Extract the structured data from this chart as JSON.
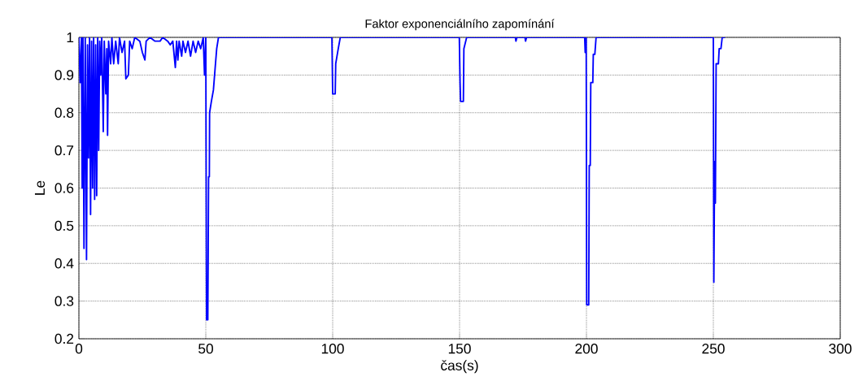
{
  "chart_data": {
    "type": "line",
    "title": "Faktor exponenciálního zapomínání",
    "xlabel": "čas(s)",
    "ylabel": "Le",
    "xlim": [
      0,
      300
    ],
    "ylim": [
      0.2,
      1
    ],
    "xticks": [
      0,
      50,
      100,
      150,
      200,
      250,
      300
    ],
    "yticks": [
      0.2,
      0.3,
      0.4,
      0.5,
      0.6,
      0.7,
      0.8,
      0.9,
      1
    ],
    "grid": true,
    "series": [
      {
        "color": "#0000ff",
        "x": [
          0,
          0.5,
          1,
          1.3,
          1.6,
          2,
          2.5,
          3,
          3.4,
          3.8,
          4.2,
          4.6,
          5,
          5.4,
          5.8,
          6.2,
          6.6,
          7,
          7.4,
          7.8,
          8.2,
          8.6,
          9,
          9.6,
          10,
          10.6,
          11,
          11.3,
          11.7,
          12.5,
          13,
          13.7,
          14.5,
          15.5,
          16,
          17,
          18,
          18.5,
          19.5,
          20,
          21,
          22,
          24,
          25,
          26,
          26.5,
          28,
          30,
          32,
          33,
          35,
          36,
          37,
          38,
          38.5,
          39,
          39.5,
          40.5,
          41,
          42,
          43,
          44,
          45,
          46,
          47,
          48,
          49,
          49.5,
          50,
          50.3,
          50.8,
          51.1,
          51.4,
          51.5,
          52.2,
          53,
          53.7,
          54.3,
          55,
          60,
          99.7,
          100,
          101,
          101.2,
          102.2,
          103,
          149.9,
          150.2,
          150.4,
          151.5,
          151.7,
          152.8,
          172,
          172.2,
          172.6,
          175.8,
          176,
          176.4,
          199.3,
          199.5,
          199.9,
          200.1,
          200.9,
          201.1,
          201.5,
          201.7,
          202.5,
          202.7,
          203.3,
          203.8,
          250,
          250.2,
          250.5,
          250.8,
          251.1,
          252,
          252.3,
          253,
          253.5,
          254.6
        ],
        "values": [
          1,
          0.88,
          1,
          0.6,
          1,
          0.44,
          1,
          0.41,
          0.98,
          0.68,
          1,
          0.53,
          0.99,
          0.6,
          1,
          0.57,
          0.98,
          0.58,
          1,
          0.7,
          0.99,
          0.9,
          1,
          0.75,
          0.99,
          0.85,
          0.97,
          0.74,
          0.99,
          0.93,
          1,
          0.93,
          0.99,
          0.93,
          1,
          0.96,
          0.99,
          0.89,
          0.9,
          0.99,
          0.97,
          1,
          0.99,
          0.96,
          0.94,
          0.99,
          1,
          0.99,
          0.99,
          1,
          0.99,
          0.98,
          0.99,
          0.92,
          0.99,
          0.94,
          0.99,
          0.95,
          0.99,
          0.96,
          0.99,
          0.95,
          0.99,
          0.96,
          0.99,
          0.97,
          1,
          0.9,
          1,
          0.25,
          0.25,
          0.63,
          0.63,
          0.8,
          0.83,
          0.86,
          0.92,
          0.97,
          1,
          1,
          1,
          0.85,
          0.85,
          0.93,
          0.97,
          1,
          1,
          0.88,
          0.83,
          0.83,
          0.97,
          1,
          1,
          0.99,
          1,
          1,
          0.99,
          1,
          1,
          0.96,
          1,
          0.29,
          0.29,
          0.66,
          0.66,
          0.88,
          0.88,
          0.955,
          0.955,
          1,
          1,
          0.35,
          0.67,
          0.56,
          0.93,
          0.93,
          0.97,
          0.97,
          1,
          1
        ]
      }
    ]
  }
}
